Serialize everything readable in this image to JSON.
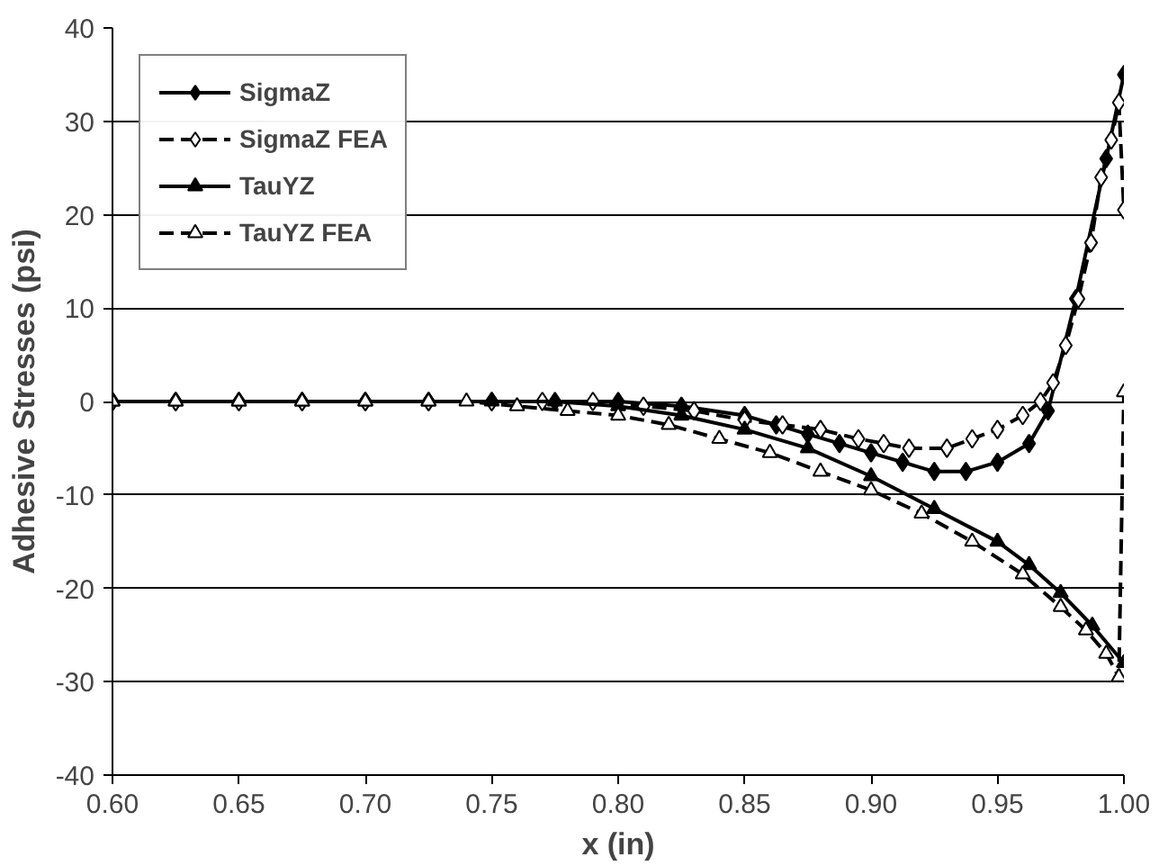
{
  "chart_data": {
    "type": "line",
    "xlabel": "x (in)",
    "ylabel": "Adhesive Stresses (psi)",
    "xlim": [
      0.6,
      1.0
    ],
    "xticks": [
      {
        "value": 0.6,
        "label": "0.60"
      },
      {
        "value": 0.65,
        "label": "0.65"
      },
      {
        "value": 0.7,
        "label": "0.70"
      },
      {
        "value": 0.75,
        "label": "0.75"
      },
      {
        "value": 0.8,
        "label": "0.80"
      },
      {
        "value": 0.85,
        "label": "0.85"
      },
      {
        "value": 0.9,
        "label": "0.90"
      },
      {
        "value": 0.95,
        "label": "0.95"
      },
      {
        "value": 1.0,
        "label": "1.00"
      }
    ],
    "ylim": [
      -40,
      40
    ],
    "yticks": [
      -40,
      -30,
      -20,
      -10,
      0,
      10,
      20,
      30,
      40
    ],
    "grid": "y",
    "legend": "top left",
    "series": [
      {
        "name": "SigmaZ",
        "color": "#000000",
        "marker": "diamond",
        "line_style": "solid",
        "x": [
          0.6,
          0.625,
          0.65,
          0.675,
          0.7,
          0.725,
          0.75,
          0.775,
          0.8,
          0.825,
          0.85,
          0.8625,
          0.875,
          0.8875,
          0.9,
          0.9125,
          0.925,
          0.9375,
          0.95,
          0.9625,
          0.97,
          0.981,
          0.993,
          1.0
        ],
        "values": [
          0,
          0,
          0,
          0,
          0,
          0,
          0,
          0,
          0,
          -0.5,
          -1.5,
          -2.5,
          -3.5,
          -4.5,
          -5.5,
          -6.5,
          -7.5,
          -7.5,
          -6.5,
          -4.5,
          -1,
          11,
          26,
          35
        ]
      },
      {
        "name": "SigmaZ FEA",
        "color": "#000000",
        "marker": "diamond",
        "line_style": "dashed",
        "x": [
          0.6,
          0.625,
          0.65,
          0.675,
          0.7,
          0.725,
          0.75,
          0.77,
          0.79,
          0.81,
          0.83,
          0.85,
          0.865,
          0.88,
          0.895,
          0.905,
          0.915,
          0.93,
          0.94,
          0.95,
          0.96,
          0.967,
          0.972,
          0.977,
          0.982,
          0.987,
          0.991,
          0.995,
          0.998,
          1.0
        ],
        "values": [
          0,
          0,
          0,
          0,
          0,
          0,
          0,
          0,
          0,
          -0.5,
          -1,
          -2,
          -2.5,
          -3,
          -4,
          -4.5,
          -5,
          -5,
          -4,
          -3,
          -1.5,
          0,
          2,
          6,
          11,
          17,
          24,
          28,
          32,
          20.5
        ]
      },
      {
        "name": "TauYZ",
        "color": "#000000",
        "marker": "triangle",
        "line_style": "solid",
        "x": [
          0.6,
          0.625,
          0.65,
          0.675,
          0.7,
          0.725,
          0.75,
          0.775,
          0.8,
          0.825,
          0.85,
          0.875,
          0.9,
          0.925,
          0.95,
          0.9625,
          0.975,
          0.9875,
          1.0
        ],
        "values": [
          0,
          0,
          0,
          0,
          0,
          0,
          0,
          0,
          -0.5,
          -1.5,
          -3,
          -5,
          -8,
          -11.5,
          -15,
          -17.5,
          -20.5,
          -24,
          -28
        ]
      },
      {
        "name": "TauYZ FEA",
        "color": "#000000",
        "marker": "triangle",
        "line_style": "dashed",
        "x": [
          0.6,
          0.625,
          0.65,
          0.675,
          0.7,
          0.725,
          0.74,
          0.76,
          0.78,
          0.8,
          0.82,
          0.84,
          0.86,
          0.88,
          0.9,
          0.92,
          0.94,
          0.96,
          0.975,
          0.985,
          0.993,
          0.998,
          1.0
        ],
        "values": [
          0,
          0,
          0,
          0,
          0,
          0,
          0,
          -0.5,
          -1,
          -1.5,
          -2.5,
          -4,
          -5.5,
          -7.5,
          -9.5,
          -12,
          -15,
          -18.5,
          -22,
          -24.5,
          -27,
          -29.5,
          1
        ]
      }
    ]
  }
}
